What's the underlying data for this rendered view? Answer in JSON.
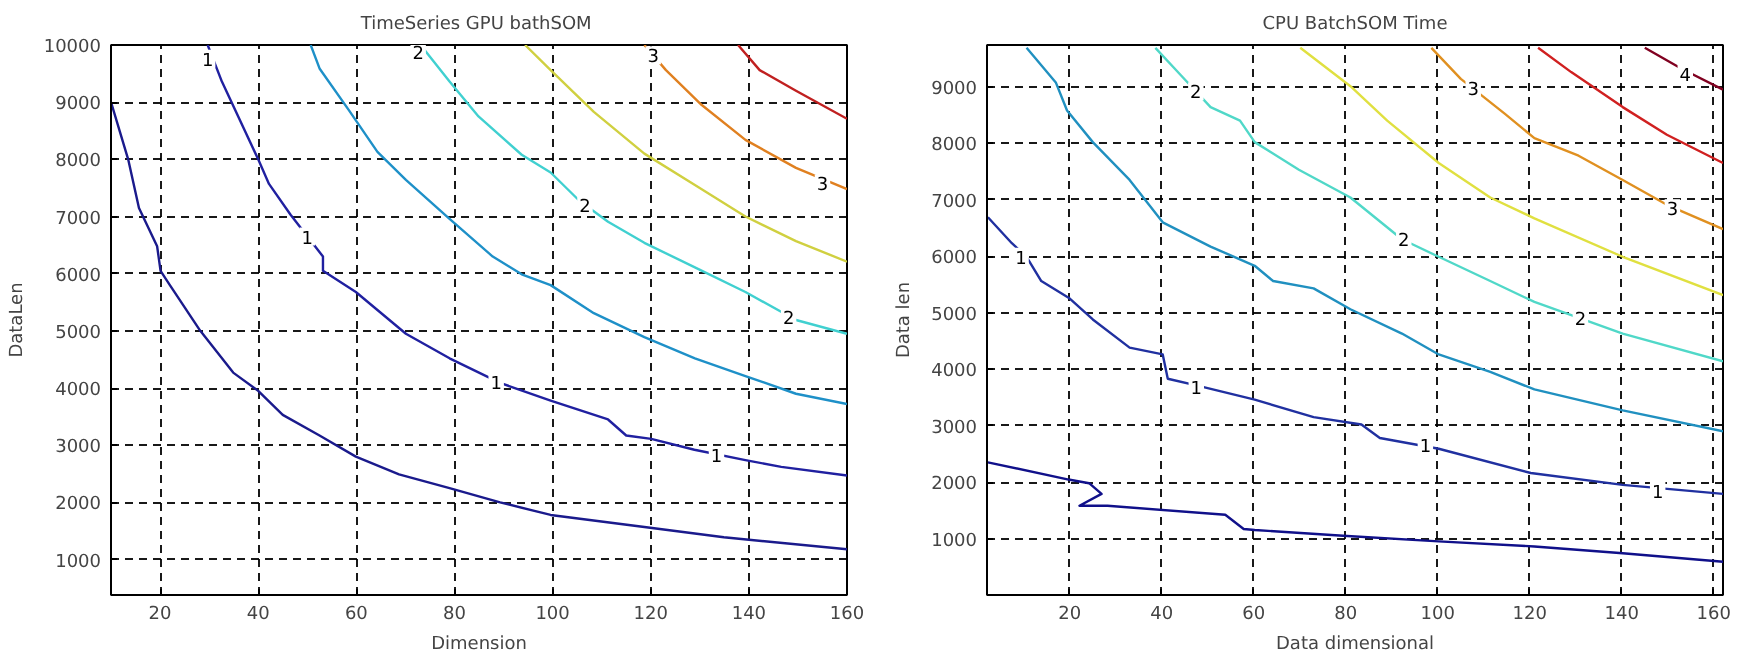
{
  "chart_data": [
    {
      "type": "line",
      "title": "TimeSeries  GPU bathSOM",
      "xlabel": "Dimension",
      "ylabel": "DataLen",
      "xlim": [
        10,
        160
      ],
      "ylim": [
        380,
        10000
      ],
      "xticks": [
        20,
        40,
        60,
        80,
        100,
        120,
        140,
        160
      ],
      "yticks": [
        1000,
        2000,
        3000,
        4000,
        5000,
        6000,
        7000,
        8000,
        9000,
        10000
      ],
      "grid": true,
      "marker": "none",
      "line_style": "solid",
      "series": [
        {
          "color": "#1a1a8c",
          "x": [
            10,
            13.5,
            15.7,
            19.4,
            20.1,
            22,
            28.2,
            34.9,
            40,
            45,
            52.5,
            59.9,
            68.7,
            79,
            89.3,
            99.6,
            118.7,
            134.9,
            160
          ],
          "values": [
            9000,
            8000,
            7150,
            6480,
            6050,
            5800,
            5000,
            4270,
            3950,
            3530,
            3170,
            2800,
            2490,
            2250,
            2000,
            1780,
            1570,
            1390,
            1180
          ]
        },
        {
          "color": "#2020a0",
          "x": [
            29.7,
            32.6,
            40,
            42.2,
            46.6,
            53.2,
            53.2,
            59.9,
            70.1,
            79,
            89.3,
            99.6,
            111.3,
            115,
            120.1,
            128.9,
            139.3,
            146.6,
            160
          ],
          "values": [
            10000,
            9360,
            8000,
            7570,
            7030,
            6300,
            6050,
            5680,
            4950,
            4520,
            4090,
            3780,
            3450,
            3170,
            3110,
            2920,
            2740,
            2620,
            2470
          ]
        },
        {
          "color": "#1e90c8",
          "x": [
            50.7,
            52.5,
            58.4,
            64.3,
            70.1,
            79,
            87.8,
            93.7,
            99.6,
            108.4,
            118.7,
            129,
            139.3,
            149.6,
            160
          ],
          "values": [
            10000,
            9590,
            8870,
            8130,
            7640,
            6960,
            6300,
            5990,
            5800,
            5310,
            4890,
            4520,
            4210,
            3900,
            3720
          ]
        },
        {
          "color": "#40d0d0",
          "x": [
            73.1,
            79,
            84.9,
            93.7,
            99.6,
            105.4,
            111.3,
            118.7,
            129,
            139.3,
            149.6,
            160
          ],
          "values": [
            10000,
            9360,
            8750,
            8080,
            7770,
            7280,
            6910,
            6540,
            6110,
            5680,
            5190,
            4950
          ]
        },
        {
          "color": "#d0d040",
          "x": [
            94.4,
            99.6,
            108.4,
            118.7,
            129,
            139.3,
            149.6,
            160
          ],
          "values": [
            10000,
            9560,
            8830,
            8100,
            7550,
            7000,
            6570,
            6210
          ]
        },
        {
          "color": "#e08020",
          "x": [
            118.7,
            123.1,
            130.4,
            139.3,
            149.6,
            160
          ],
          "values": [
            10000,
            9560,
            8950,
            8340,
            7850,
            7480
          ]
        },
        {
          "color": "#c02020",
          "x": [
            137.8,
            142.2,
            149.6,
            160
          ],
          "values": [
            10000,
            9560,
            9200,
            8710
          ]
        }
      ],
      "annotations": [
        {
          "text": "1",
          "x": 29.7,
          "y": 9760
        },
        {
          "text": "1",
          "x": 50,
          "y": 6650
        },
        {
          "text": "2",
          "x": 72.6,
          "y": 9870
        },
        {
          "text": "3",
          "x": 120.5,
          "y": 9820
        },
        {
          "text": "2",
          "x": 106.6,
          "y": 7200
        },
        {
          "text": "3",
          "x": 155,
          "y": 7580
        },
        {
          "text": "2",
          "x": 148.1,
          "y": 5250
        },
        {
          "text": "1",
          "x": 88.5,
          "y": 4100
        },
        {
          "text": "1",
          "x": 133.4,
          "y": 2830
        }
      ]
    },
    {
      "type": "line",
      "title": "CPU BatchSOM Time",
      "xlabel": "Data dimensional",
      "ylabel": "Data len",
      "xlim": [
        2,
        162
      ],
      "ylim": [
        0,
        9740
      ],
      "xticks": [
        20,
        40,
        60,
        80,
        100,
        120,
        140,
        160
      ],
      "yticks": [
        1000,
        2000,
        3000,
        4000,
        5000,
        6000,
        7000,
        8000,
        9000
      ],
      "grid": true,
      "marker": "none",
      "line_style": "solid",
      "series": [
        {
          "color": "#10108a",
          "x": [
            2.2,
            20,
            24.2,
            26.9,
            22.1,
            28.2,
            53.8,
            57.8,
            60.2,
            79.4,
            100.2,
            121,
            140.2,
            162
          ],
          "values": [
            2350,
            2040,
            1980,
            1790,
            1580,
            1580,
            1420,
            1170,
            1150,
            1050,
            950,
            860,
            740,
            590
          ]
        },
        {
          "color": "#2030a0",
          "x": [
            2.2,
            7.4,
            10.6,
            13.8,
            20,
            25,
            33,
            40.2,
            41.3,
            48.2,
            60.2,
            73,
            83.4,
            87.4,
            100.2,
            120.2,
            140.2,
            162
          ],
          "values": [
            6690,
            6230,
            5990,
            5560,
            5250,
            4880,
            4380,
            4260,
            3830,
            3700,
            3460,
            3150,
            3020,
            2780,
            2590,
            2160,
            1950,
            1790
          ]
        },
        {
          "color": "#2090c0",
          "x": [
            10.6,
            17,
            19.4,
            25,
            33,
            40.2,
            50.6,
            60.2,
            64.2,
            73,
            81,
            92.2,
            100.2,
            111.4,
            121,
            140.2,
            162
          ],
          "values": [
            9690,
            9070,
            8580,
            8020,
            7350,
            6600,
            6170,
            5830,
            5560,
            5430,
            5060,
            4630,
            4260,
            3950,
            3640,
            3270,
            2900
          ]
        },
        {
          "color": "#50d8c8",
          "x": [
            38.6,
            44.2,
            50.6,
            57,
            60.2,
            69.8,
            81,
            92.2,
            100.2,
            111.4,
            121,
            140.2,
            162
          ],
          "values": [
            9690,
            9200,
            8640,
            8400,
            8020,
            7530,
            7040,
            6300,
            5990,
            5560,
            5190,
            4630,
            4140
          ]
        },
        {
          "color": "#e0e040",
          "x": [
            70.1,
            81,
            89,
            100.2,
            111.4,
            121,
            140.2,
            162
          ],
          "values": [
            9690,
            9010,
            8400,
            7650,
            7040,
            6670,
            5990,
            5310
          ]
        },
        {
          "color": "#e09020",
          "x": [
            98.6,
            105,
            114.6,
            121,
            130.6,
            140.2,
            149.8,
            162
          ],
          "values": [
            9690,
            9140,
            8520,
            8090,
            7780,
            7350,
            6910,
            6480
          ]
        },
        {
          "color": "#d02020",
          "x": [
            121.8,
            129,
            140.2,
            149.8,
            162
          ],
          "values": [
            9690,
            9260,
            8640,
            8150,
            7650
          ]
        },
        {
          "color": "#800020",
          "x": [
            145,
            153,
            162
          ],
          "values": [
            9690,
            9320,
            8950
          ]
        }
      ],
      "annotations": [
        {
          "text": "1",
          "x": 9.4,
          "y": 5990
        },
        {
          "text": "2",
          "x": 47.4,
          "y": 8920
        },
        {
          "text": "3",
          "x": 107.7,
          "y": 8980
        },
        {
          "text": "4",
          "x": 153.8,
          "y": 9230
        },
        {
          "text": "2",
          "x": 92.6,
          "y": 6300
        },
        {
          "text": "3",
          "x": 151,
          "y": 6850
        },
        {
          "text": "2",
          "x": 131,
          "y": 4900
        },
        {
          "text": "1",
          "x": 47.5,
          "y": 3680
        },
        {
          "text": "1",
          "x": 97.3,
          "y": 2650
        },
        {
          "text": "1",
          "x": 147.8,
          "y": 1850
        }
      ]
    }
  ]
}
